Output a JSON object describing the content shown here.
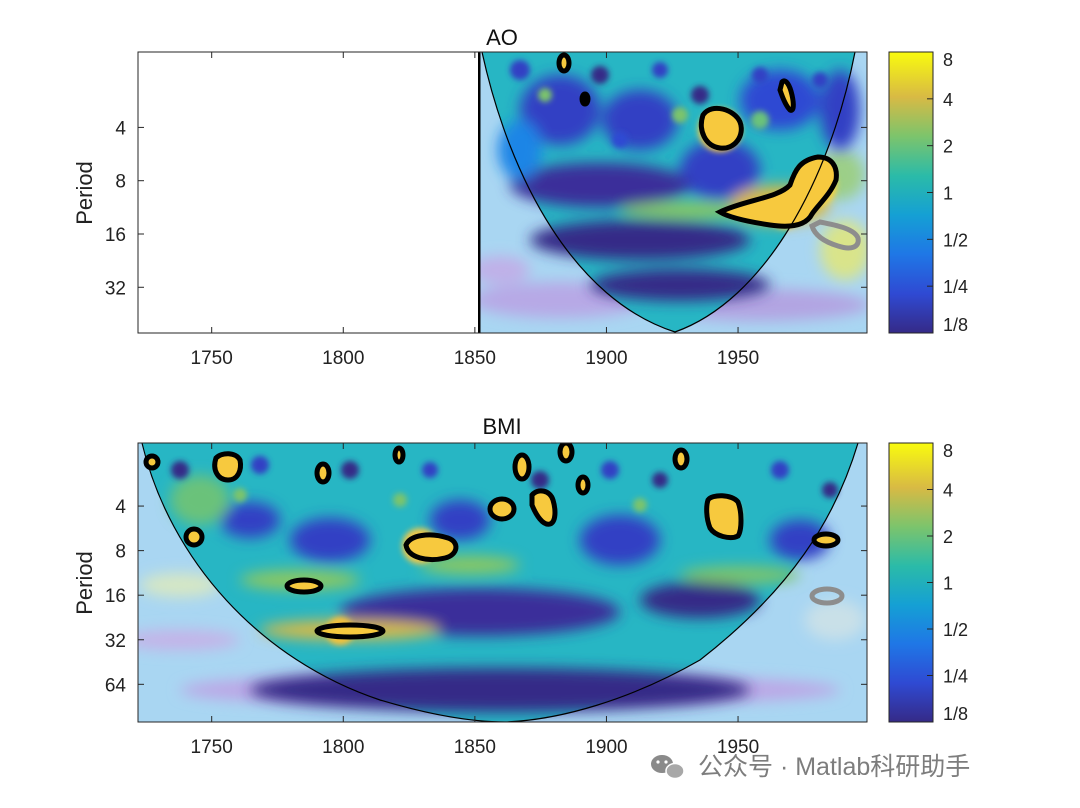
{
  "chart_data": [
    {
      "type": "heatmap",
      "title": "AO",
      "xlabel": "",
      "ylabel": "Period",
      "xlim": [
        1722,
        1999
      ],
      "ylim": [
        1.5,
        58
      ],
      "yscale": "log2",
      "data_start": 1851,
      "x_ticks": [
        1750,
        1800,
        1850,
        1900,
        1950
      ],
      "y_ticks": [
        4,
        8,
        16,
        32
      ],
      "colorbar": {
        "ticks": [
          "1/8",
          "1/4",
          "1/2",
          "1",
          "2",
          "4",
          "8"
        ],
        "colormap": "parula"
      },
      "cone_of_influence": [
        [
          1851,
          1.5
        ],
        [
          1870,
          5.5
        ],
        [
          1890,
          13
        ],
        [
          1905,
          24
        ],
        [
          1924,
          58
        ],
        [
          1945,
          26
        ],
        [
          1965,
          13
        ],
        [
          1985,
          5
        ],
        [
          1999,
          1.5
        ]
      ],
      "significant_regions": [
        {
          "center": [
            1882,
            1.9
          ]
        },
        {
          "center": [
            1890,
            3.5
          ]
        },
        {
          "center": [
            1942,
            5.2
          ]
        },
        {
          "center": [
            1971,
            3.0
          ]
        },
        {
          "center": [
            1965,
            11.5
          ]
        }
      ],
      "cone_significant_regions": [
        {
          "center": [
            1989,
            14
          ]
        }
      ]
    },
    {
      "type": "heatmap",
      "title": "BMI",
      "xlabel": "",
      "ylabel": "Period",
      "xlim": [
        1722,
        1999
      ],
      "ylim": [
        1.5,
        115
      ],
      "yscale": "log2",
      "data_start": 1722,
      "x_ticks": [
        1750,
        1800,
        1850,
        1900,
        1950
      ],
      "y_ticks": [
        4,
        8,
        16,
        32,
        64
      ],
      "colorbar": {
        "ticks": [
          "1/8",
          "1/4",
          "1/2",
          "1",
          "2",
          "4",
          "8"
        ],
        "colormap": "parula"
      },
      "cone_of_influence": [
        [
          1724,
          1.5
        ],
        [
          1735,
          4
        ],
        [
          1750,
          9
        ],
        [
          1775,
          22
        ],
        [
          1810,
          55
        ],
        [
          1862,
          115
        ],
        [
          1905,
          65
        ],
        [
          1940,
          25
        ],
        [
          1970,
          9
        ],
        [
          1985,
          4
        ],
        [
          1995,
          1.5
        ]
      ],
      "significant_regions": [
        {
          "center": [
            1724,
            2.1
          ]
        },
        {
          "center": [
            1754,
            2.3
          ]
        },
        {
          "center": [
            1742,
            7.5
          ]
        },
        {
          "center": [
            1790,
            2.6
          ]
        },
        {
          "center": [
            1785,
            15
          ]
        },
        {
          "center": [
            1800,
            29
          ]
        },
        {
          "center": [
            1820,
            1.8
          ]
        },
        {
          "center": [
            1832,
            9.5
          ]
        },
        {
          "center": [
            1864,
            2.6
          ]
        },
        {
          "center": [
            1867,
            5.5
          ]
        },
        {
          "center": [
            1874,
            5.0
          ]
        },
        {
          "center": [
            1884,
            1.8
          ]
        },
        {
          "center": [
            1890,
            3.2
          ]
        },
        {
          "center": [
            1928,
            2.1
          ]
        },
        {
          "center": [
            1944,
            6.0
          ]
        },
        {
          "center": [
            1988,
            8.0
          ]
        }
      ],
      "cone_significant_regions": [
        {
          "center": [
            1987,
            17
          ]
        }
      ]
    }
  ],
  "watermark": {
    "icon": "wechat-icon",
    "text": "公众号 · Matlab科研助手"
  }
}
